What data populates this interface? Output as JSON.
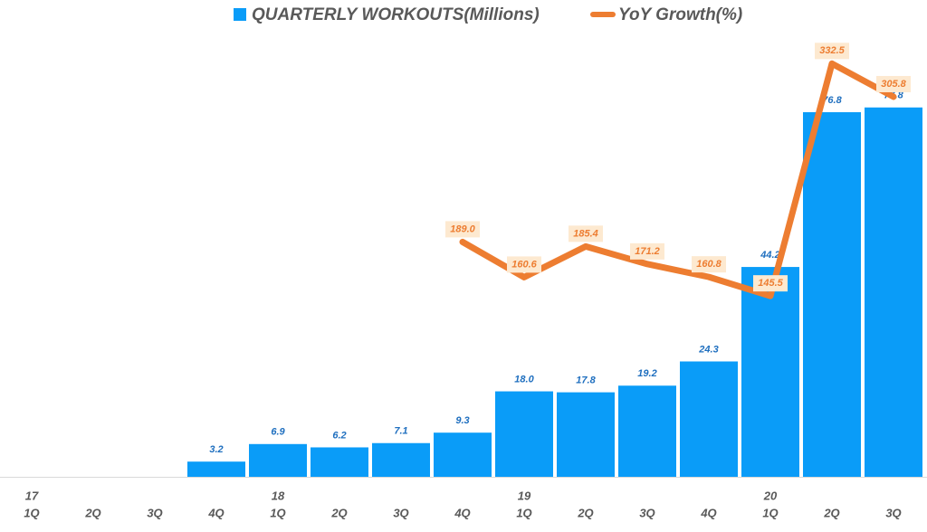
{
  "chart_data": {
    "type": "bar",
    "categories": [
      "1Q",
      "2Q",
      "3Q",
      "4Q",
      "1Q",
      "2Q",
      "3Q",
      "4Q",
      "1Q",
      "2Q",
      "3Q",
      "4Q",
      "1Q",
      "2Q",
      "3Q"
    ],
    "category_years": [
      "17",
      null,
      null,
      null,
      "18",
      null,
      null,
      null,
      "19",
      null,
      null,
      null,
      "20",
      null,
      null
    ],
    "series": [
      {
        "name": "QUARTERLY WORKOUTS(Millions)",
        "type": "bar",
        "color": "#0a9cf8",
        "values": [
          null,
          null,
          null,
          3.2,
          6.9,
          6.2,
          7.1,
          9.3,
          18.0,
          17.8,
          19.2,
          24.3,
          44.2,
          76.8,
          77.8
        ],
        "value_labels": [
          null,
          null,
          null,
          "3.2",
          "6.9",
          "6.2",
          "7.1",
          "9.3",
          "18.0",
          "17.8",
          "19.2",
          "24.3",
          "44.2",
          "76.8",
          "77.8"
        ]
      },
      {
        "name": "YoY Growth(%)",
        "type": "line",
        "axis": "y2",
        "color": "#ed7d31",
        "values": [
          null,
          null,
          null,
          null,
          null,
          null,
          null,
          189.0,
          160.6,
          185.4,
          171.2,
          160.8,
          145.5,
          332.5,
          305.8
        ],
        "value_labels": [
          null,
          null,
          null,
          null,
          null,
          null,
          null,
          "189.0",
          "160.6",
          "185.4",
          "171.2",
          "160.8",
          "145.5",
          "332.5",
          "305.8"
        ]
      }
    ],
    "ylim": [
      0,
      89
    ],
    "y2lim": [
      0,
      340
    ]
  }
}
